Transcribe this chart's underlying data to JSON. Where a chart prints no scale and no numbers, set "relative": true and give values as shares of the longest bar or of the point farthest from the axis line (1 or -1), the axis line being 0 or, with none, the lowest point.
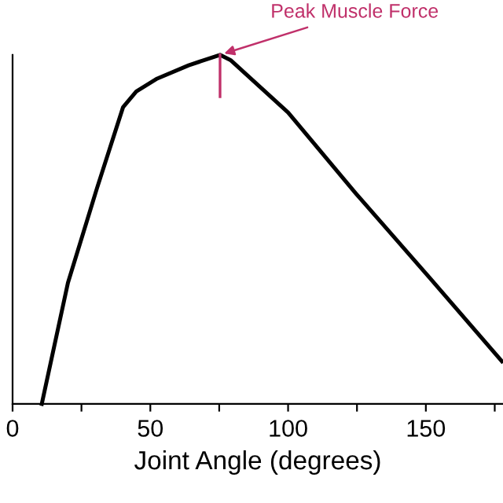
{
  "chart_data": {
    "type": "line",
    "xlabel": "Joint Angle (degrees)",
    "relative": true,
    "x": [
      10.6,
      20.1,
      30.6,
      40.1,
      44.9,
      52.5,
      63.9,
      75.3,
      79.1,
      100,
      124.7,
      151.3,
      177.6
    ],
    "series": [
      {
        "color": "#000000",
        "values": [
          0,
          0.347,
          0.617,
          0.85,
          0.895,
          0.932,
          0.97,
          1.0,
          0.985,
          0.835,
          0.602,
          0.362,
          0.122
        ]
      }
    ],
    "xlim": [
      0,
      178
    ],
    "xticks": [
      0,
      {
        "value": 25,
        "label": null
      },
      50,
      {
        "value": 75,
        "label": null
      },
      100,
      {
        "value": 125,
        "label": null
      },
      150,
      {
        "value": 175,
        "label": null
      }
    ],
    "annotations": [
      {
        "text": "Peak Muscle Force",
        "x": 75.3,
        "y": 1.0
      }
    ],
    "grid": false,
    "legend": false,
    "marker": "none",
    "line_style": "solid"
  }
}
